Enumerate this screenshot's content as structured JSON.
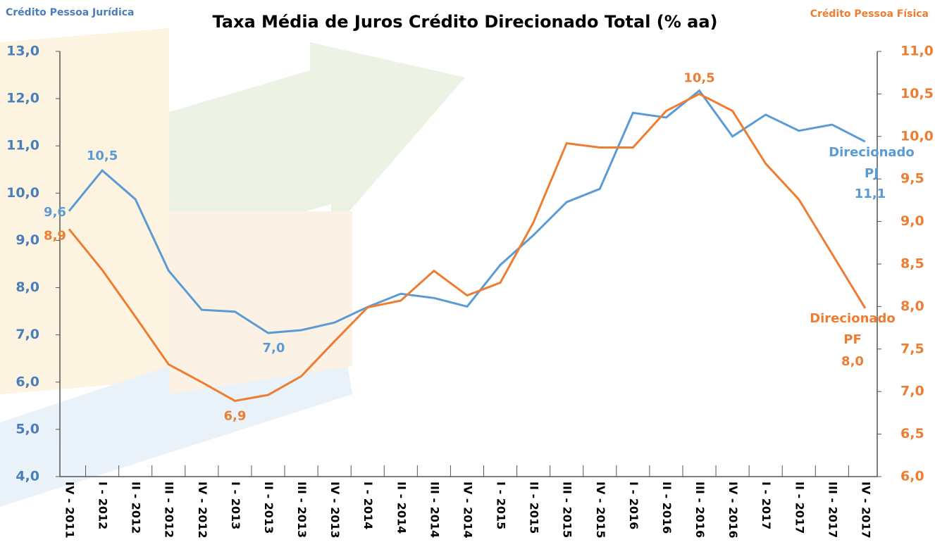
{
  "chart_data": {
    "type": "line",
    "title": "Taxa Média de Juros Crédito Direcionado Total (% aa)",
    "y_label": "Crédito Pessoa Jurídica",
    "y2_label": "Crédito Pessoa Física",
    "categories": [
      "IV - 2011",
      "I - 2012",
      "II - 2012",
      "III - 2012",
      "IV - 2012",
      "I - 2013",
      "II - 2013",
      "III - 2013",
      "IV - 2013",
      "I - 2014",
      "II - 2014",
      "III - 2014",
      "IV - 2014",
      "I - 2015",
      "II - 2015",
      "III - 2015",
      "IV - 2015",
      "I - 2016",
      "II - 2016",
      "III - 2016",
      "IV - 2016",
      "I - 2017",
      "II - 2017",
      "III - 2017",
      "IV - 2017"
    ],
    "series": [
      {
        "name": "Direcionado PJ",
        "color": "#5b9bd5",
        "axis": "y",
        "values": [
          9.62,
          10.48,
          9.87,
          8.36,
          7.53,
          7.49,
          7.04,
          7.1,
          7.26,
          7.59,
          7.87,
          7.78,
          7.6,
          8.48,
          9.11,
          9.81,
          10.09,
          11.7,
          11.6,
          12.17,
          11.2,
          11.66,
          11.32,
          11.45,
          11.09
        ],
        "value_labels": [
          "9,6",
          "10,5",
          null,
          null,
          null,
          null,
          "7,0",
          null,
          null,
          null,
          null,
          null,
          null,
          null,
          null,
          null,
          null,
          null,
          null,
          null,
          null,
          null,
          null,
          null,
          "11,1"
        ]
      },
      {
        "name": "Direcionado PF",
        "color": "#ed7d31",
        "axis": "y2",
        "values": [
          8.91,
          8.43,
          7.88,
          7.32,
          7.11,
          6.89,
          6.96,
          7.18,
          7.59,
          7.99,
          8.07,
          8.42,
          8.13,
          8.28,
          8.99,
          9.92,
          9.87,
          9.87,
          10.3,
          10.5,
          10.3,
          9.68,
          9.26,
          8.62,
          7.98
        ],
        "value_labels": [
          "8,9",
          null,
          null,
          null,
          null,
          "6,9",
          null,
          null,
          null,
          null,
          null,
          null,
          null,
          null,
          null,
          null,
          null,
          null,
          null,
          "10,5",
          null,
          null,
          null,
          null,
          "8,0"
        ]
      }
    ],
    "ylim": [
      4,
      13
    ],
    "yticks": [
      {
        "value": 4,
        "label": "4,0"
      },
      {
        "value": 5,
        "label": "5,0"
      },
      {
        "value": 6,
        "label": "6,0"
      },
      {
        "value": 7,
        "label": "7,0"
      },
      {
        "value": 8,
        "label": "8,0"
      },
      {
        "value": 9,
        "label": "9,0"
      },
      {
        "value": 10,
        "label": "10,0"
      },
      {
        "value": 11,
        "label": "11,0"
      },
      {
        "value": 12,
        "label": "12,0"
      },
      {
        "value": 13,
        "label": "13,0"
      }
    ],
    "y2lim": [
      6,
      11
    ],
    "y2ticks": [
      {
        "value": 6,
        "label": "6,0"
      },
      {
        "value": 6.5,
        "label": "6,5"
      },
      {
        "value": 7,
        "label": "7,0"
      },
      {
        "value": 7.5,
        "label": "7,5"
      },
      {
        "value": 8,
        "label": "8,0"
      },
      {
        "value": 8.5,
        "label": "8,5"
      },
      {
        "value": 9,
        "label": "9,0"
      },
      {
        "value": 9.5,
        "label": "9,5"
      },
      {
        "value": 10,
        "label": "10,0"
      },
      {
        "value": 10.5,
        "label": "10,5"
      },
      {
        "value": 11,
        "label": "11,0"
      }
    ]
  }
}
